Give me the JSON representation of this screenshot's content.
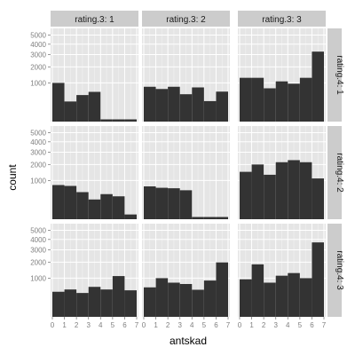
{
  "chart_data": {
    "type": "bar",
    "xlabel": "antskad",
    "ylabel": "count",
    "x_ticks": [
      "0",
      "1",
      "2",
      "3",
      "4",
      "5",
      "6",
      "7"
    ],
    "y_ticks": [
      {
        "label": "1000",
        "value": 1000
      },
      {
        "label": "2000",
        "value": 2000
      },
      {
        "label": "3000",
        "value": 3000
      },
      {
        "label": "4000",
        "value": 4000
      },
      {
        "label": "5000",
        "value": 5000
      }
    ],
    "y_scale": "sqrt",
    "ylim": [
      0,
      5800
    ],
    "column_facet": {
      "labels": [
        "rating.3: 1",
        "rating.3: 2",
        "rating.3: 3"
      ]
    },
    "row_facet": {
      "labels": [
        "rating.4: 1",
        "rating.4: 2",
        "rating.4: 3"
      ]
    },
    "bins": [
      [
        0,
        1
      ],
      [
        1,
        2
      ],
      [
        2,
        3
      ],
      [
        3,
        4
      ],
      [
        4,
        5
      ],
      [
        5,
        6
      ],
      [
        6,
        7
      ]
    ],
    "panels": [
      [
        {
          "values": [
            1000,
            270,
            470,
            590,
            0,
            0,
            0
          ]
        },
        {
          "values": [
            810,
            710,
            810,
            500,
            780,
            280,
            600
          ]
        },
        {
          "values": [
            1280,
            1280,
            740,
            1080,
            960,
            1280,
            3270
          ]
        }
      ],
      [
        {
          "values": [
            780,
            740,
            490,
            260,
            420,
            350,
            15
          ]
        },
        {
          "values": [
            720,
            660,
            640,
            560,
            0,
            0,
            0
          ]
        },
        {
          "values": [
            1500,
            2000,
            1320,
            2170,
            2330,
            2170,
            1110
          ]
        }
      ],
      [
        {
          "values": [
            420,
            500,
            380,
            600,
            500,
            1110,
            470
          ]
        },
        {
          "values": [
            580,
            1000,
            780,
            720,
            490,
            880,
            1980
          ]
        },
        {
          "values": [
            940,
            1840,
            780,
            1130,
            1280,
            1000,
            3700
          ]
        }
      ]
    ],
    "colors": {
      "bar": "#333333",
      "panel_background": "#e5e5e5",
      "grid_major": "#ffffff",
      "grid_minor": "#f2f2f2",
      "strip_background": "#cccccc",
      "tick_text": "#7f7f7f"
    },
    "grid": true,
    "legend": "none"
  }
}
